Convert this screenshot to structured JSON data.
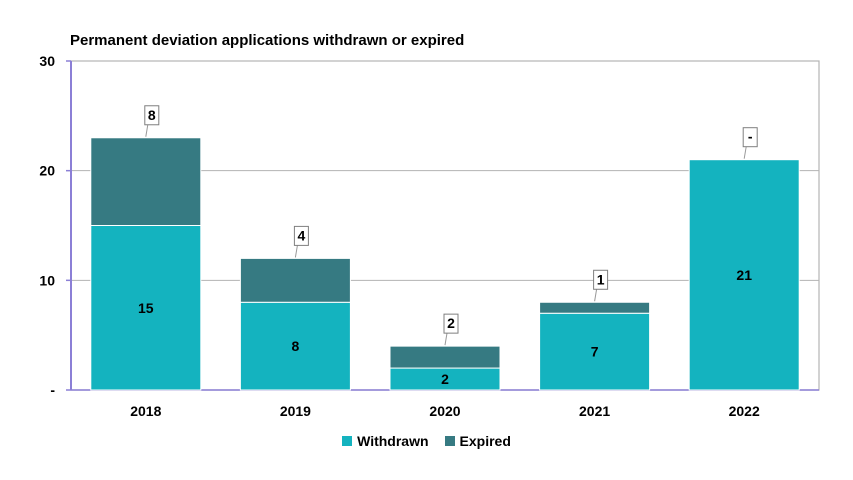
{
  "chart_data": {
    "type": "bar",
    "stacked": true,
    "title": "Permanent deviation applications withdrawn or expired",
    "categories": [
      "2018",
      "2019",
      "2020",
      "2021",
      "2022"
    ],
    "series": [
      {
        "name": "Withdrawn",
        "values": [
          15,
          8,
          2,
          7,
          21
        ],
        "color": "#14B3BF",
        "labels": [
          "15",
          "8",
          "2",
          "7",
          "21"
        ]
      },
      {
        "name": "Expired",
        "values": [
          8,
          4,
          2,
          1,
          0
        ],
        "color": "#367A82",
        "labels": [
          "8",
          "4",
          "2",
          "1",
          "-"
        ]
      }
    ],
    "y_ticks": [
      {
        "value": 0,
        "label": "-"
      },
      {
        "value": 10,
        "label": "10"
      },
      {
        "value": 20,
        "label": "20"
      },
      {
        "value": 30,
        "label": "30"
      }
    ],
    "ylim": [
      0,
      30
    ],
    "grid": true,
    "legend_position": "bottom"
  }
}
